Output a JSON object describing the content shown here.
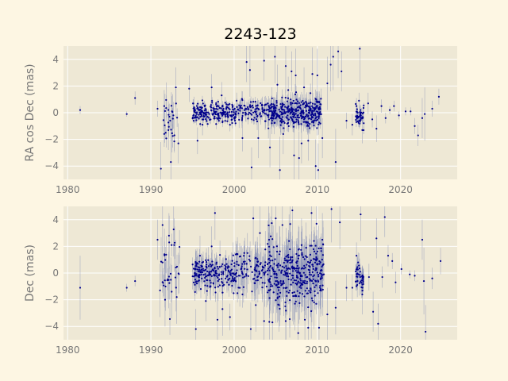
{
  "figure": {
    "title": "2243-123",
    "colors": {
      "background": "#fdf6e3",
      "axes_background": "#eee8d5",
      "grid": "#ffffff",
      "point": "#00008b",
      "errorbar": "#8a93b8",
      "text": "#777777"
    }
  },
  "chart_data": [
    {
      "type": "scatter",
      "title": "2243-123",
      "xlabel": "",
      "ylabel": "RA cos Dec (mas)",
      "xlim": [
        1979.5,
        2026.8
      ],
      "ylim": [
        -5,
        5
      ],
      "xticks": [
        1980,
        1990,
        2000,
        2010,
        2020
      ],
      "yticks": [
        -4,
        -2,
        0,
        2,
        4
      ],
      "grid": true,
      "series": [
        {
          "marker": "point",
          "error_bars": true,
          "points": [
            {
              "x": 1981.5,
              "y": 0.2,
              "err": 0.3
            },
            {
              "x": 1987.1,
              "y": -0.1,
              "err": 0.2
            },
            {
              "x": 1988.1,
              "y": 1.1,
              "err": 0.5
            },
            {
              "x": 1990.8,
              "y": 0.3,
              "err": 0.6
            },
            {
              "x": 1991.2,
              "y": -4.2,
              "err": 2.0
            },
            {
              "x": 1991.6,
              "y": 0.5,
              "err": 1.2
            },
            {
              "x": 1992.1,
              "y": -1.3,
              "err": 1.5
            },
            {
              "x": 1992.4,
              "y": -3.7,
              "err": 2.5
            },
            {
              "x": 1992.7,
              "y": -0.2,
              "err": 1.0
            },
            {
              "x": 1993.0,
              "y": 1.9,
              "err": 1.5
            },
            {
              "x": 1993.3,
              "y": -2.3,
              "err": 1.5
            },
            {
              "x": 1994.6,
              "y": 1.8,
              "err": 1.0
            },
            {
              "x": 1995.2,
              "y": 0.4,
              "err": 0.8
            },
            {
              "x": 1995.6,
              "y": -2.1,
              "err": 1.0
            },
            {
              "x": 1996.2,
              "y": -0.9,
              "err": 0.8
            },
            {
              "x": 1997.3,
              "y": 1.9,
              "err": 1.0
            },
            {
              "x": 1998.5,
              "y": 1.3,
              "err": 1.0
            },
            {
              "x": 1999.5,
              "y": -0.9,
              "err": 0.5
            },
            {
              "x": 2000.3,
              "y": 0.9,
              "err": 0.6
            },
            {
              "x": 2001.0,
              "y": -1.9,
              "err": 1.0
            },
            {
              "x": 2001.5,
              "y": 3.8,
              "err": 1.5
            },
            {
              "x": 2001.9,
              "y": 3.2,
              "err": 2.0
            },
            {
              "x": 2002.1,
              "y": -4.1,
              "err": 1.5
            },
            {
              "x": 2002.9,
              "y": -1.9,
              "err": 1.5
            },
            {
              "x": 2003.6,
              "y": 3.9,
              "err": 1.5
            },
            {
              "x": 2004.3,
              "y": -2.6,
              "err": 1.5
            },
            {
              "x": 2004.9,
              "y": 4.2,
              "err": 2.0
            },
            {
              "x": 2005.2,
              "y": 2.1,
              "err": 1.5
            },
            {
              "x": 2005.5,
              "y": -4.3,
              "err": 2.5
            },
            {
              "x": 2005.9,
              "y": -1.6,
              "err": 1.5
            },
            {
              "x": 2006.2,
              "y": 3.5,
              "err": 2.0
            },
            {
              "x": 2006.5,
              "y": 1.7,
              "err": 1.0
            },
            {
              "x": 2006.9,
              "y": 3.1,
              "err": 1.5
            },
            {
              "x": 2007.2,
              "y": -3.2,
              "err": 2.0
            },
            {
              "x": 2007.4,
              "y": 2.8,
              "err": 2.0
            },
            {
              "x": 2007.8,
              "y": -3.4,
              "err": 2.0
            },
            {
              "x": 2008.1,
              "y": -2.3,
              "err": 1.5
            },
            {
              "x": 2008.4,
              "y": 1.9,
              "err": 1.5
            },
            {
              "x": 2008.9,
              "y": -2.1,
              "err": 1.5
            },
            {
              "x": 2009.4,
              "y": 2.9,
              "err": 2.0
            },
            {
              "x": 2009.8,
              "y": -4.0,
              "err": 2.0
            },
            {
              "x": 2010.0,
              "y": 2.8,
              "err": 2.0
            },
            {
              "x": 2010.1,
              "y": -4.3,
              "err": 2.0
            },
            {
              "x": 2010.6,
              "y": -1.9,
              "err": 1.5
            },
            {
              "x": 2011.2,
              "y": 2.2,
              "err": 2.0
            },
            {
              "x": 2011.6,
              "y": 3.6,
              "err": 2.0
            },
            {
              "x": 2011.9,
              "y": 4.2,
              "err": 2.5
            },
            {
              "x": 2012.2,
              "y": -3.7,
              "err": 2.5
            },
            {
              "x": 2012.5,
              "y": 4.6,
              "err": 2.0
            },
            {
              "x": 2012.9,
              "y": 3.1,
              "err": 1.5
            },
            {
              "x": 2013.5,
              "y": -0.6,
              "err": 0.6
            },
            {
              "x": 2014.2,
              "y": -0.9,
              "err": 0.8
            },
            {
              "x": 2014.7,
              "y": 0.5,
              "err": 0.6
            },
            {
              "x": 2015.0,
              "y": 0.9,
              "err": 0.6
            },
            {
              "x": 2015.1,
              "y": 4.8,
              "err": 2.5
            },
            {
              "x": 2015.4,
              "y": -1.3,
              "err": 1.0
            },
            {
              "x": 2016.1,
              "y": 0.7,
              "err": 0.8
            },
            {
              "x": 2016.6,
              "y": -0.5,
              "err": 0.6
            },
            {
              "x": 2017.1,
              "y": -1.2,
              "err": 1.0
            },
            {
              "x": 2017.7,
              "y": 0.5,
              "err": 0.5
            },
            {
              "x": 2018.2,
              "y": -0.4,
              "err": 0.4
            },
            {
              "x": 2018.7,
              "y": 0.2,
              "err": 0.3
            },
            {
              "x": 2019.2,
              "y": 0.5,
              "err": 0.4
            },
            {
              "x": 2019.8,
              "y": -0.2,
              "err": 0.3
            },
            {
              "x": 2020.6,
              "y": 0.1,
              "err": 0.3
            },
            {
              "x": 2021.2,
              "y": 0.1,
              "err": 0.3
            },
            {
              "x": 2021.7,
              "y": -1.0,
              "err": 0.6
            },
            {
              "x": 2022.1,
              "y": -1.7,
              "err": 0.8
            },
            {
              "x": 2022.6,
              "y": -0.4,
              "err": 1.5
            },
            {
              "x": 2022.9,
              "y": -0.1,
              "err": 2.0
            },
            {
              "x": 2023.8,
              "y": 0.3,
              "err": 0.6
            },
            {
              "x": 2024.6,
              "y": 1.2,
              "err": 0.6
            }
          ],
          "dense_clusters": [
            {
              "x_range": [
                1991.3,
                1993.2
              ],
              "y_mean": -0.4,
              "y_spread": 1.1,
              "count": 25,
              "err": 1.2
            },
            {
              "x_range": [
                1995.0,
                2000.3
              ],
              "y_mean": 0.0,
              "y_spread": 0.35,
              "count": 210,
              "err": 0.35
            },
            {
              "x_range": [
                2000.3,
                2004.0
              ],
              "y_mean": 0.1,
              "y_spread": 0.35,
              "count": 90,
              "err": 0.6
            },
            {
              "x_range": [
                2004.0,
                2010.5
              ],
              "y_mean": 0.0,
              "y_spread": 0.55,
              "count": 360,
              "err": 0.7
            },
            {
              "x_range": [
                2014.6,
                2015.6
              ],
              "y_mean": -0.2,
              "y_spread": 0.4,
              "count": 45,
              "err": 0.4
            }
          ]
        }
      ]
    },
    {
      "type": "scatter",
      "xlabel": "",
      "ylabel": "Dec (mas)",
      "xlim": [
        1979.5,
        2026.8
      ],
      "ylim": [
        -5,
        5
      ],
      "xticks": [
        1980,
        1990,
        2000,
        2010,
        2020
      ],
      "yticks": [
        -4,
        -2,
        0,
        2,
        4
      ],
      "grid": true,
      "series": [
        {
          "marker": "point",
          "error_bars": true,
          "points": [
            {
              "x": 1981.5,
              "y": -1.1,
              "err": 2.4
            },
            {
              "x": 1987.1,
              "y": -1.1,
              "err": 0.3
            },
            {
              "x": 1988.1,
              "y": -0.6,
              "err": 0.4
            },
            {
              "x": 1990.8,
              "y": 2.5,
              "err": 1.5
            },
            {
              "x": 1991.1,
              "y": -1.3,
              "err": 2.0
            },
            {
              "x": 1991.4,
              "y": 3.6,
              "err": 2.0
            },
            {
              "x": 1991.7,
              "y": -2.0,
              "err": 2.0
            },
            {
              "x": 1992.2,
              "y": 2.3,
              "err": 2.0
            },
            {
              "x": 1992.5,
              "y": -1.4,
              "err": 2.0
            },
            {
              "x": 1992.8,
              "y": 2.1,
              "err": 2.0
            },
            {
              "x": 1993.1,
              "y": -1.8,
              "err": 2.0
            },
            {
              "x": 1995.4,
              "y": -4.2,
              "err": 1.5
            },
            {
              "x": 1995.9,
              "y": 1.3,
              "err": 1.5
            },
            {
              "x": 1996.6,
              "y": -2.1,
              "err": 1.5
            },
            {
              "x": 1997.3,
              "y": 2.0,
              "err": 1.5
            },
            {
              "x": 1997.7,
              "y": 4.5,
              "err": 2.0
            },
            {
              "x": 1998.0,
              "y": -3.5,
              "err": 2.0
            },
            {
              "x": 1998.6,
              "y": -2.7,
              "err": 2.0
            },
            {
              "x": 1999.5,
              "y": -3.3,
              "err": 1.0
            },
            {
              "x": 2000.2,
              "y": 1.4,
              "err": 1.0
            },
            {
              "x": 2001.0,
              "y": -1.6,
              "err": 1.0
            },
            {
              "x": 2001.6,
              "y": 1.5,
              "err": 1.5
            },
            {
              "x": 2002.0,
              "y": -4.2,
              "err": 2.0
            },
            {
              "x": 2002.3,
              "y": 4.1,
              "err": 2.0
            },
            {
              "x": 2002.6,
              "y": -2.4,
              "err": 2.0
            },
            {
              "x": 2003.1,
              "y": 3.0,
              "err": 2.0
            },
            {
              "x": 2003.6,
              "y": -3.6,
              "err": 2.0
            },
            {
              "x": 2004.2,
              "y": 2.5,
              "err": 2.0
            },
            {
              "x": 2004.6,
              "y": -3.7,
              "err": 2.0
            },
            {
              "x": 2005.0,
              "y": 4.1,
              "err": 2.5
            },
            {
              "x": 2005.4,
              "y": -2.4,
              "err": 2.0
            },
            {
              "x": 2005.8,
              "y": 3.6,
              "err": 2.0
            },
            {
              "x": 2006.2,
              "y": -3.6,
              "err": 2.5
            },
            {
              "x": 2006.6,
              "y": 2.4,
              "err": 2.0
            },
            {
              "x": 2007.0,
              "y": 4.7,
              "err": 2.5
            },
            {
              "x": 2007.3,
              "y": -2.3,
              "err": 2.0
            },
            {
              "x": 2007.7,
              "y": -4.5,
              "err": 2.5
            },
            {
              "x": 2008.1,
              "y": 2.1,
              "err": 2.0
            },
            {
              "x": 2008.5,
              "y": -3.5,
              "err": 2.5
            },
            {
              "x": 2008.9,
              "y": -4.1,
              "err": 2.5
            },
            {
              "x": 2009.3,
              "y": 4.5,
              "err": 2.5
            },
            {
              "x": 2009.6,
              "y": -2.2,
              "err": 2.0
            },
            {
              "x": 2009.9,
              "y": 3.7,
              "err": 2.0
            },
            {
              "x": 2010.2,
              "y": -4.1,
              "err": 2.0
            },
            {
              "x": 2010.6,
              "y": 2.5,
              "err": 2.0
            },
            {
              "x": 2011.2,
              "y": -3.1,
              "err": 2.0
            },
            {
              "x": 2011.7,
              "y": 4.8,
              "err": 2.5
            },
            {
              "x": 2012.2,
              "y": -2.6,
              "err": 2.0
            },
            {
              "x": 2012.7,
              "y": 3.8,
              "err": 2.0
            },
            {
              "x": 2013.5,
              "y": -1.1,
              "err": 1.0
            },
            {
              "x": 2014.2,
              "y": -1.1,
              "err": 1.0
            },
            {
              "x": 2014.7,
              "y": 1.3,
              "err": 1.0
            },
            {
              "x": 2015.2,
              "y": 4.4,
              "err": 2.0
            },
            {
              "x": 2015.4,
              "y": -1.6,
              "err": 1.5
            },
            {
              "x": 2016.2,
              "y": -0.3,
              "err": 1.0
            },
            {
              "x": 2016.7,
              "y": -2.9,
              "err": 1.5
            },
            {
              "x": 2017.1,
              "y": 2.6,
              "err": 1.5
            },
            {
              "x": 2017.3,
              "y": -3.8,
              "err": 1.5
            },
            {
              "x": 2017.8,
              "y": -0.3,
              "err": 0.8
            },
            {
              "x": 2018.1,
              "y": 4.2,
              "err": 1.5
            },
            {
              "x": 2018.5,
              "y": 1.3,
              "err": 0.8
            },
            {
              "x": 2019.0,
              "y": 0.9,
              "err": 0.6
            },
            {
              "x": 2019.4,
              "y": -0.7,
              "err": 0.8
            },
            {
              "x": 2020.1,
              "y": 0.3,
              "err": 0.4
            },
            {
              "x": 2021.1,
              "y": -0.1,
              "err": 0.3
            },
            {
              "x": 2021.7,
              "y": -0.2,
              "err": 0.4
            },
            {
              "x": 2022.6,
              "y": 2.5,
              "err": 1.5
            },
            {
              "x": 2022.8,
              "y": -0.6,
              "err": 2.5
            },
            {
              "x": 2023.0,
              "y": -4.4,
              "err": 2.0
            },
            {
              "x": 2023.8,
              "y": -0.4,
              "err": 0.8
            },
            {
              "x": 2024.8,
              "y": 0.9,
              "err": 1.0
            }
          ],
          "dense_clusters": [
            {
              "x_range": [
                1991.0,
                1993.5
              ],
              "y_mean": 0.4,
              "y_spread": 1.4,
              "count": 30,
              "err": 1.8
            },
            {
              "x_range": [
                1995.0,
                2000.3
              ],
              "y_mean": 0.0,
              "y_spread": 0.6,
              "count": 200,
              "err": 0.9
            },
            {
              "x_range": [
                2000.3,
                2004.0
              ],
              "y_mean": 0.1,
              "y_spread": 0.7,
              "count": 90,
              "err": 1.5
            },
            {
              "x_range": [
                2004.0,
                2010.8
              ],
              "y_mean": 0.0,
              "y_spread": 1.1,
              "count": 360,
              "err": 1.8
            },
            {
              "x_range": [
                2014.6,
                2015.6
              ],
              "y_mean": -0.2,
              "y_spread": 0.6,
              "count": 45,
              "err": 0.8
            }
          ]
        }
      ]
    }
  ]
}
